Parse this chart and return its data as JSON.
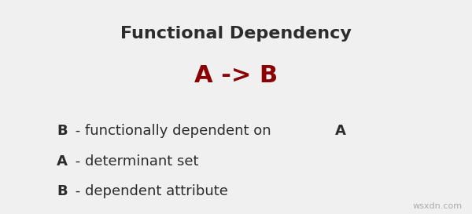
{
  "background_color": "#f0f0f0",
  "title": "Functional Dependency",
  "title_color": "#2c2c2c",
  "title_fontsize": 16,
  "title_bold": true,
  "formula": "A -> B",
  "formula_color": "#8b0000",
  "formula_fontsize": 22,
  "formula_bold": true,
  "lines": [
    {
      "parts": [
        {
          "text": "B",
          "bold": true,
          "color": "#2c2c2c"
        },
        {
          "text": " - functionally dependent on ",
          "bold": false,
          "color": "#2c2c2c"
        },
        {
          "text": "A",
          "bold": true,
          "color": "#2c2c2c"
        }
      ]
    },
    {
      "parts": [
        {
          "text": "A",
          "bold": true,
          "color": "#2c2c2c"
        },
        {
          "text": " - determinant set",
          "bold": false,
          "color": "#2c2c2c"
        }
      ]
    },
    {
      "parts": [
        {
          "text": "B",
          "bold": true,
          "color": "#2c2c2c"
        },
        {
          "text": " - dependent attribute",
          "bold": false,
          "color": "#2c2c2c"
        }
      ]
    }
  ],
  "lines_fontsize": 13,
  "watermark": "wsxdn.com",
  "watermark_color": "#aaaaaa",
  "watermark_fontsize": 8
}
